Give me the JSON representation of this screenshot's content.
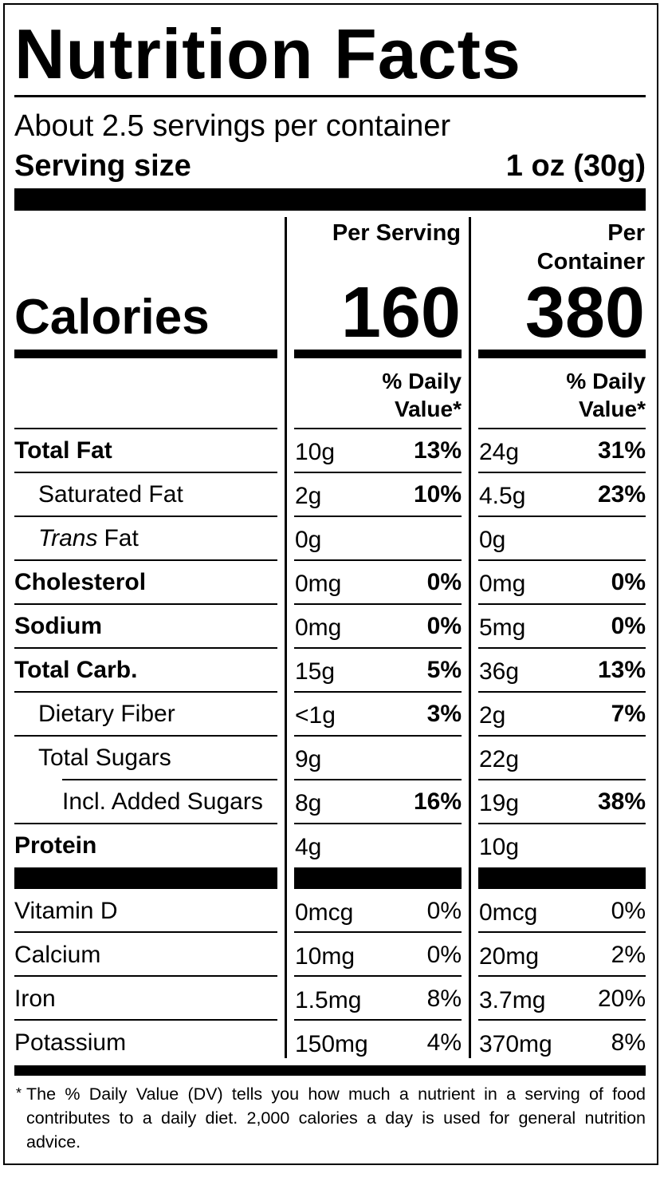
{
  "title": "Nutrition Facts",
  "servings": "About 2.5 servings per container",
  "serving_size": {
    "label": "Serving size",
    "value": "1 oz (30g)"
  },
  "columns": [
    "Per Serving",
    "Per Container"
  ],
  "calories": {
    "label": "Calories",
    "values": [
      "160",
      "380"
    ]
  },
  "dv_header": "% Daily Value*",
  "nutrients": [
    {
      "name": "Total Fat",
      "serving": [
        "10g",
        "13%"
      ],
      "container": [
        "24g",
        "31%"
      ]
    },
    {
      "name": "Saturated Fat",
      "serving": [
        "2g",
        "10%"
      ],
      "container": [
        "4.5g",
        "23%"
      ]
    },
    {
      "italic": "Trans",
      "name": "Fat",
      "serving": [
        "0g"
      ],
      "container": [
        "0g"
      ]
    },
    {
      "name": "Cholesterol",
      "serving": [
        "0mg",
        "0%"
      ],
      "container": [
        "0mg",
        "0%"
      ]
    },
    {
      "name": "Sodium",
      "serving": [
        "0mg",
        "0%"
      ],
      "container": [
        "5mg",
        "0%"
      ]
    },
    {
      "name": "Total Carb.",
      "serving": [
        "15g",
        "5%"
      ],
      "container": [
        "36g",
        "13%"
      ]
    },
    {
      "name": "Dietary Fiber",
      "serving": [
        "<1g",
        "3%"
      ],
      "container": [
        "2g",
        "7%"
      ]
    },
    {
      "name": "Total Sugars",
      "serving": [
        "9g"
      ],
      "container": [
        "22g"
      ]
    },
    {
      "name": "Incl. Added Sugars",
      "serving": [
        "8g",
        "16%"
      ],
      "container": [
        "19g",
        "38%"
      ]
    },
    {
      "name": "Protein",
      "serving": [
        "4g"
      ],
      "container": [
        "10g"
      ]
    }
  ],
  "vitamins": [
    {
      "name": "Vitamin D",
      "serving": [
        "0mcg",
        "0%"
      ],
      "container": [
        "0mcg",
        "0%"
      ]
    },
    {
      "name": "Calcium",
      "serving": [
        "10mg",
        "0%"
      ],
      "container": [
        "20mg",
        "2%"
      ]
    },
    {
      "name": "Iron",
      "serving": [
        "1.5mg",
        "8%"
      ],
      "container": [
        "3.7mg",
        "20%"
      ]
    },
    {
      "name": "Potassium",
      "serving": [
        "150mg",
        "4%"
      ],
      "container": [
        "370mg",
        "8%"
      ]
    }
  ],
  "footnote": {
    "mark": "*",
    "text": "The % Daily Value (DV) tells you how much a nutrient in a serving of food contributes to a daily diet. 2,000 calories a day is used for general nutrition advice."
  }
}
